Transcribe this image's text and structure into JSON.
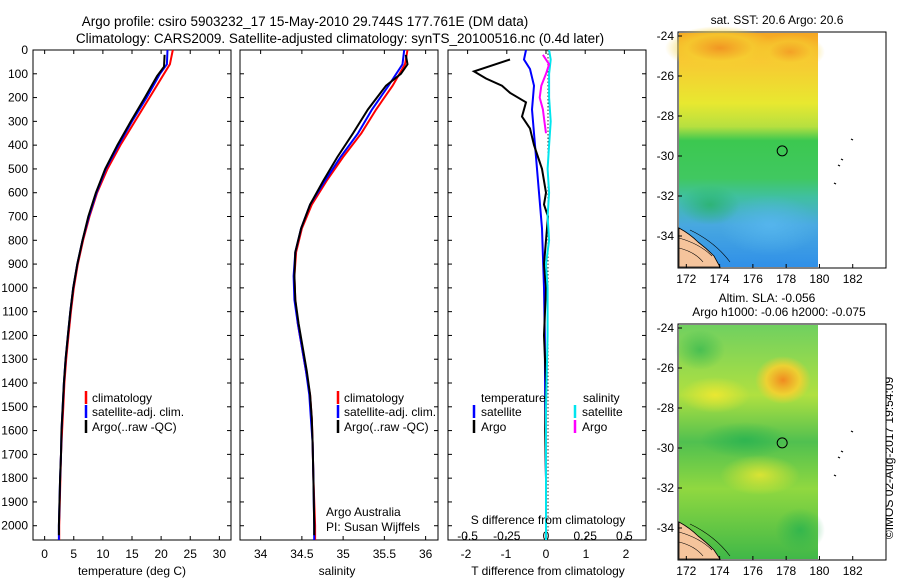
{
  "header": {
    "line1": "Argo profile: csiro 5903232_17 15-May-2010 29.744S 177.761E (DM data)",
    "line2": "Climatology: CARS2009. Satellite-adjusted climatology: synTS_20100516.nc (0.4d later)"
  },
  "side_stamp": "©IMOS 02-Aug-2017 19:54:09",
  "colors": {
    "climatology": "#ff0000",
    "satellite": "#0000ff",
    "argo": "#000000",
    "sat_salinity": "#00e5ee",
    "argo_salinity": "#ff00ff"
  },
  "chart_data": [
    {
      "type": "line",
      "name": "temperature-profile",
      "xlabel": "temperature (deg C)",
      "xlim": [
        -2,
        32
      ],
      "ylim": [
        2060,
        0
      ],
      "xticks": [
        "0",
        "5",
        "10",
        "15",
        "20",
        "25",
        "30"
      ],
      "yticks": [
        "0",
        "100",
        "200",
        "300",
        "400",
        "500",
        "600",
        "700",
        "800",
        "900",
        "1000",
        "1100",
        "1200",
        "1300",
        "1400",
        "1500",
        "1600",
        "1700",
        "1800",
        "1900",
        "2000"
      ],
      "legend": [
        "climatology",
        "satellite-adj. clim.",
        "Argo(..raw -QC)"
      ],
      "series": [
        {
          "name": "climatology",
          "color": "#ff0000",
          "points": [
            [
              22,
              0
            ],
            [
              21.5,
              60
            ],
            [
              20.5,
              100
            ],
            [
              18,
              200
            ],
            [
              15.5,
              300
            ],
            [
              13,
              400
            ],
            [
              10.8,
              500
            ],
            [
              9,
              600
            ],
            [
              7.7,
              700
            ],
            [
              6.6,
              800
            ],
            [
              5.7,
              900
            ],
            [
              5,
              1000
            ],
            [
              4.5,
              1100
            ],
            [
              4.1,
              1200
            ],
            [
              3.7,
              1300
            ],
            [
              3.4,
              1400
            ],
            [
              3.2,
              1500
            ],
            [
              3.0,
              1600
            ],
            [
              2.8,
              1700
            ],
            [
              2.7,
              1800
            ],
            [
              2.6,
              1900
            ],
            [
              2.5,
              2000
            ],
            [
              2.5,
              2060
            ]
          ]
        },
        {
          "name": "satellite-adj. clim.",
          "color": "#0000ff",
          "points": [
            [
              21.1,
              0
            ],
            [
              21,
              60
            ],
            [
              19.8,
              100
            ],
            [
              17.5,
              200
            ],
            [
              15,
              300
            ],
            [
              12.7,
              400
            ],
            [
              10.5,
              500
            ],
            [
              8.9,
              600
            ],
            [
              7.6,
              700
            ],
            [
              6.5,
              800
            ],
            [
              5.6,
              900
            ],
            [
              4.9,
              1000
            ],
            [
              4.4,
              1100
            ],
            [
              4.0,
              1200
            ],
            [
              3.6,
              1300
            ],
            [
              3.3,
              1400
            ],
            [
              3.1,
              1500
            ],
            [
              2.9,
              1600
            ],
            [
              2.8,
              1700
            ],
            [
              2.65,
              1800
            ],
            [
              2.55,
              1900
            ],
            [
              2.45,
              2000
            ],
            [
              2.45,
              2060
            ]
          ]
        },
        {
          "name": "Argo(..raw -QC)",
          "color": "#000000",
          "points": [
            [
              20.6,
              20
            ],
            [
              20.5,
              70
            ],
            [
              19.3,
              110
            ],
            [
              17.2,
              200
            ],
            [
              14.8,
              300
            ],
            [
              12.5,
              400
            ],
            [
              10.4,
              500
            ],
            [
              8.8,
              600
            ],
            [
              7.5,
              700
            ],
            [
              6.5,
              800
            ],
            [
              5.6,
              900
            ],
            [
              4.9,
              1000
            ],
            [
              4.4,
              1100
            ],
            [
              4.0,
              1200
            ],
            [
              3.6,
              1300
            ],
            [
              3.3,
              1400
            ],
            [
              3.1,
              1500
            ],
            [
              2.9,
              1600
            ],
            [
              2.8,
              1700
            ],
            [
              2.65,
              1800
            ],
            [
              2.55,
              1900
            ],
            [
              2.45,
              2000
            ],
            [
              2.45,
              2040
            ]
          ]
        }
      ]
    },
    {
      "type": "line",
      "name": "salinity-profile",
      "xlabel": "salinity",
      "xlim": [
        33.75,
        36.15
      ],
      "ylim": [
        2060,
        0
      ],
      "xticks": [
        "34",
        "34.5",
        "35",
        "35.5",
        "36"
      ],
      "legend": [
        "climatology",
        "satellite-adj. clim.",
        "Argo(..raw -QC)"
      ],
      "annotation": [
        "Argo Australia",
        "PI: Susan Wijffels"
      ],
      "series": [
        {
          "name": "climatology",
          "color": "#ff0000",
          "points": [
            [
              35.78,
              0
            ],
            [
              35.75,
              60
            ],
            [
              35.6,
              150
            ],
            [
              35.4,
              250
            ],
            [
              35.22,
              350
            ],
            [
              35.0,
              450
            ],
            [
              34.8,
              550
            ],
            [
              34.62,
              650
            ],
            [
              34.5,
              750
            ],
            [
              34.43,
              850
            ],
            [
              34.41,
              950
            ],
            [
              34.42,
              1050
            ],
            [
              34.45,
              1150
            ],
            [
              34.5,
              1250
            ],
            [
              34.55,
              1350
            ],
            [
              34.6,
              1450
            ],
            [
              34.62,
              1550
            ],
            [
              34.63,
              1650
            ],
            [
              34.64,
              1800
            ],
            [
              34.66,
              2000
            ],
            [
              34.66,
              2060
            ]
          ]
        },
        {
          "name": "satellite-adj. clim.",
          "color": "#0000ff",
          "points": [
            [
              35.74,
              0
            ],
            [
              35.72,
              60
            ],
            [
              35.55,
              150
            ],
            [
              35.35,
              250
            ],
            [
              35.18,
              350
            ],
            [
              34.97,
              450
            ],
            [
              34.78,
              550
            ],
            [
              34.6,
              650
            ],
            [
              34.49,
              750
            ],
            [
              34.42,
              850
            ],
            [
              34.4,
              950
            ],
            [
              34.41,
              1050
            ],
            [
              34.45,
              1150
            ],
            [
              34.5,
              1250
            ],
            [
              34.55,
              1350
            ],
            [
              34.59,
              1450
            ],
            [
              34.61,
              1550
            ],
            [
              34.63,
              1650
            ],
            [
              34.64,
              1800
            ],
            [
              34.65,
              2000
            ],
            [
              34.65,
              2060
            ]
          ]
        },
        {
          "name": "Argo(..raw -QC)",
          "color": "#000000",
          "points": [
            [
              35.76,
              20
            ],
            [
              35.78,
              60
            ],
            [
              35.7,
              100
            ],
            [
              35.52,
              150
            ],
            [
              35.3,
              250
            ],
            [
              35.12,
              350
            ],
            [
              34.93,
              450
            ],
            [
              34.76,
              550
            ],
            [
              34.6,
              650
            ],
            [
              34.49,
              750
            ],
            [
              34.42,
              850
            ],
            [
              34.41,
              950
            ],
            [
              34.42,
              1050
            ],
            [
              34.46,
              1150
            ],
            [
              34.51,
              1250
            ],
            [
              34.56,
              1350
            ],
            [
              34.6,
              1450
            ],
            [
              34.62,
              1550
            ],
            [
              34.63,
              1650
            ],
            [
              34.64,
              1800
            ],
            [
              34.65,
              2000
            ],
            [
              34.65,
              2040
            ]
          ]
        }
      ]
    },
    {
      "type": "line",
      "name": "difference-from-climatology",
      "xlabel": "T difference from climatology",
      "xlabel_top": "S difference from climatology",
      "xlim": [
        -2.45,
        2.5
      ],
      "ylim": [
        2060,
        0
      ],
      "xticks_T": [
        "-2",
        "-1",
        "0",
        "1",
        "2"
      ],
      "xticks_S": [
        "-0.5",
        "-0.25",
        "0",
        "0.25",
        "0.5"
      ],
      "legend": {
        "temperature_header": "temperature",
        "salinity_header": "salinity",
        "items": [
          "satellite",
          "Argo",
          "satellite",
          "Argo"
        ]
      },
      "series": [
        {
          "name": "satellite",
          "quantity": "temperature",
          "color": "#0000ff",
          "points": [
            [
              -0.5,
              0
            ],
            [
              -0.55,
              40
            ],
            [
              -0.4,
              80
            ],
            [
              -0.3,
              150
            ],
            [
              -0.35,
              250
            ],
            [
              -0.3,
              350
            ],
            [
              -0.25,
              450
            ],
            [
              -0.2,
              550
            ],
            [
              -0.15,
              650
            ],
            [
              -0.1,
              750
            ],
            [
              -0.08,
              850
            ],
            [
              -0.05,
              1000
            ],
            [
              -0.03,
              1200
            ],
            [
              -0.02,
              1500
            ],
            [
              0,
              1800
            ],
            [
              0,
              2060
            ]
          ]
        },
        {
          "name": "Argo",
          "quantity": "temperature",
          "color": "#000000",
          "points": [
            [
              -0.9,
              40
            ],
            [
              -1.8,
              90
            ],
            [
              -1.5,
              120
            ],
            [
              -1.1,
              150
            ],
            [
              -0.9,
              180
            ],
            [
              -0.5,
              220
            ],
            [
              -0.6,
              280
            ],
            [
              -0.4,
              330
            ],
            [
              -0.3,
              400
            ],
            [
              -0.2,
              450
            ],
            [
              -0.1,
              500
            ],
            [
              -0.05,
              550
            ],
            [
              0,
              600
            ],
            [
              -0.05,
              650
            ],
            [
              0.05,
              700
            ],
            [
              0,
              800
            ],
            [
              -0.05,
              900
            ],
            [
              0,
              1000
            ],
            [
              -0.05,
              1200
            ],
            [
              0,
              1400
            ],
            [
              -0.02,
              1600
            ],
            [
              0,
              1800
            ],
            [
              0,
              2040
            ]
          ]
        },
        {
          "name": "satellite",
          "quantity": "salinity",
          "color": "#00e5ee",
          "points": [
            [
              0.02,
              0
            ],
            [
              0.03,
              40
            ],
            [
              0.02,
              100
            ],
            [
              0.02,
              200
            ],
            [
              0.03,
              300
            ],
            [
              0.02,
              400
            ],
            [
              0.01,
              500
            ],
            [
              0.02,
              600
            ],
            [
              0.01,
              700
            ],
            [
              0.02,
              800
            ],
            [
              0.0,
              900
            ],
            [
              0.01,
              1000
            ],
            [
              0.01,
              1200
            ],
            [
              0.0,
              1500
            ],
            [
              0.0,
              1800
            ],
            [
              0.0,
              2060
            ]
          ]
        },
        {
          "name": "Argo",
          "quantity": "salinity",
          "color": "#ff00ff",
          "points": [
            [
              -0.02,
              20
            ],
            [
              0.02,
              60
            ],
            [
              0.0,
              100
            ],
            [
              -0.03,
              150
            ],
            [
              -0.04,
              200
            ],
            [
              -0.02,
              250
            ],
            [
              -0.01,
              300
            ],
            [
              0.0,
              350
            ]
          ]
        }
      ]
    },
    {
      "type": "heatmap",
      "name": "sst-map",
      "title": "sat. SST: 20.6  Argo: 20.6",
      "xlim": [
        171.5,
        184
      ],
      "ylim": [
        -35.6,
        -23.8
      ],
      "xticks": [
        "172",
        "174",
        "176",
        "178",
        "180",
        "182"
      ],
      "yticks": [
        "-24",
        "-26",
        "-28",
        "-30",
        "-32",
        "-34"
      ],
      "marker": {
        "lon": 177.761,
        "lat": -29.744
      }
    },
    {
      "type": "heatmap",
      "name": "sla-map",
      "title": "Altim. SLA: -0.056",
      "subtitle": "Argo h1000: -0.06 h2000: -0.075",
      "xlim": [
        171.5,
        184
      ],
      "ylim": [
        -35.6,
        -23.8
      ],
      "xticks": [
        "172",
        "174",
        "176",
        "178",
        "180",
        "182"
      ],
      "yticks": [
        "-24",
        "-26",
        "-28",
        "-30",
        "-32",
        "-34"
      ],
      "marker": {
        "lon": 177.761,
        "lat": -29.744
      }
    }
  ]
}
